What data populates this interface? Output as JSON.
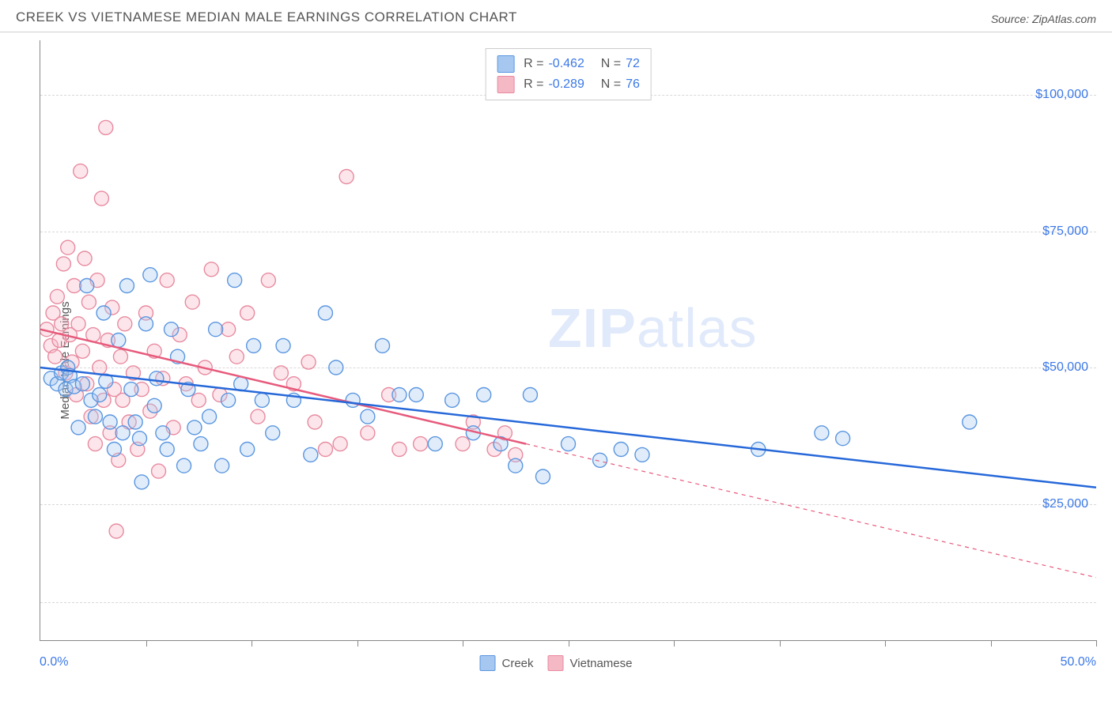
{
  "header": {
    "title": "CREEK VS VIETNAMESE MEDIAN MALE EARNINGS CORRELATION CHART",
    "source_prefix": "Source: ",
    "source_name": "ZipAtlas.com"
  },
  "chart": {
    "type": "scatter",
    "ylabel": "Median Male Earnings",
    "xlim": [
      0,
      50
    ],
    "ylim": [
      0,
      110000
    ],
    "xtick_positions": [
      0,
      5,
      10,
      15,
      20,
      25,
      30,
      35,
      40,
      45,
      50
    ],
    "xaxis_left_label": "0.0%",
    "xaxis_right_label": "50.0%",
    "yticks": [
      {
        "value": 25000,
        "label": "$25,000"
      },
      {
        "value": 50000,
        "label": "$50,000"
      },
      {
        "value": 75000,
        "label": "$75,000"
      },
      {
        "value": 100000,
        "label": "$100,000"
      }
    ],
    "grid_values": [
      7000,
      25000,
      50000,
      75000,
      100000
    ],
    "grid_color": "#d8d8d8",
    "background_color": "#ffffff",
    "marker_radius": 9,
    "marker_fill_opacity": 0.35,
    "marker_stroke_width": 1.4,
    "line_width": 2.5,
    "watermark": "ZIPatlas"
  },
  "series": {
    "creek": {
      "label": "Creek",
      "color_fill": "#a6c8f0",
      "color_stroke": "#5a96e0",
      "line_color": "#2668d9",
      "stats": {
        "R": "-0.462",
        "N": "72"
      },
      "regression": {
        "x1": 0,
        "y1": 50000,
        "x2": 50,
        "y2": 28000,
        "dashed": false
      },
      "points": [
        [
          0.5,
          48000
        ],
        [
          0.8,
          47000
        ],
        [
          1.0,
          49000
        ],
        [
          1.2,
          46000
        ],
        [
          1.3,
          50000
        ],
        [
          1.4,
          48500
        ],
        [
          1.6,
          46500
        ],
        [
          1.8,
          39000
        ],
        [
          2.0,
          47000
        ],
        [
          2.2,
          65000
        ],
        [
          2.4,
          44000
        ],
        [
          2.6,
          41000
        ],
        [
          2.8,
          45000
        ],
        [
          3.0,
          60000
        ],
        [
          3.1,
          47500
        ],
        [
          3.3,
          40000
        ],
        [
          3.5,
          35000
        ],
        [
          3.7,
          55000
        ],
        [
          3.9,
          38000
        ],
        [
          4.1,
          65000
        ],
        [
          4.3,
          46000
        ],
        [
          4.5,
          40000
        ],
        [
          4.7,
          37000
        ],
        [
          4.8,
          29000
        ],
        [
          5.0,
          58000
        ],
        [
          5.2,
          67000
        ],
        [
          5.4,
          43000
        ],
        [
          5.5,
          48000
        ],
        [
          5.8,
          38000
        ],
        [
          6.0,
          35000
        ],
        [
          6.2,
          57000
        ],
        [
          6.5,
          52000
        ],
        [
          6.8,
          32000
        ],
        [
          7.0,
          46000
        ],
        [
          7.3,
          39000
        ],
        [
          7.6,
          36000
        ],
        [
          8.0,
          41000
        ],
        [
          8.3,
          57000
        ],
        [
          8.6,
          32000
        ],
        [
          8.9,
          44000
        ],
        [
          9.2,
          66000
        ],
        [
          9.5,
          47000
        ],
        [
          9.8,
          35000
        ],
        [
          10.1,
          54000
        ],
        [
          10.5,
          44000
        ],
        [
          11.0,
          38000
        ],
        [
          11.5,
          54000
        ],
        [
          12.0,
          44000
        ],
        [
          12.8,
          34000
        ],
        [
          13.5,
          60000
        ],
        [
          14.0,
          50000
        ],
        [
          14.8,
          44000
        ],
        [
          15.5,
          41000
        ],
        [
          16.2,
          54000
        ],
        [
          17.0,
          45000
        ],
        [
          17.8,
          45000
        ],
        [
          18.7,
          36000
        ],
        [
          19.5,
          44000
        ],
        [
          20.5,
          38000
        ],
        [
          21.0,
          45000
        ],
        [
          21.8,
          36000
        ],
        [
          22.5,
          32000
        ],
        [
          23.2,
          45000
        ],
        [
          23.8,
          30000
        ],
        [
          25.0,
          36000
        ],
        [
          26.5,
          33000
        ],
        [
          27.5,
          35000
        ],
        [
          28.5,
          34000
        ],
        [
          34.0,
          35000
        ],
        [
          37.0,
          38000
        ],
        [
          38.0,
          37000
        ],
        [
          44.0,
          40000
        ]
      ]
    },
    "vietnamese": {
      "label": "Vietnamese",
      "color_fill": "#f5b8c5",
      "color_stroke": "#e88aa0",
      "line_color": "#e75a7c",
      "stats": {
        "R": "-0.289",
        "N": "76"
      },
      "regression_solid": {
        "x1": 0,
        "y1": 57000,
        "x2": 23,
        "y2": 36000
      },
      "regression_dashed": {
        "x1": 23,
        "y1": 36000,
        "x2": 50,
        "y2": 11500
      },
      "points": [
        [
          0.3,
          57000
        ],
        [
          0.5,
          54000
        ],
        [
          0.6,
          60000
        ],
        [
          0.7,
          52000
        ],
        [
          0.8,
          63000
        ],
        [
          0.9,
          55000
        ],
        [
          1.0,
          58000
        ],
        [
          1.1,
          69000
        ],
        [
          1.2,
          49000
        ],
        [
          1.3,
          72000
        ],
        [
          1.4,
          56000
        ],
        [
          1.5,
          51000
        ],
        [
          1.6,
          65000
        ],
        [
          1.7,
          45000
        ],
        [
          1.8,
          58000
        ],
        [
          1.9,
          86000
        ],
        [
          2.0,
          53000
        ],
        [
          2.1,
          70000
        ],
        [
          2.2,
          47000
        ],
        [
          2.3,
          62000
        ],
        [
          2.4,
          41000
        ],
        [
          2.5,
          56000
        ],
        [
          2.6,
          36000
        ],
        [
          2.7,
          66000
        ],
        [
          2.8,
          50000
        ],
        [
          2.9,
          81000
        ],
        [
          3.0,
          44000
        ],
        [
          3.1,
          94000
        ],
        [
          3.2,
          55000
        ],
        [
          3.3,
          38000
        ],
        [
          3.4,
          61000
        ],
        [
          3.5,
          46000
        ],
        [
          3.6,
          20000
        ],
        [
          3.7,
          33000
        ],
        [
          3.8,
          52000
        ],
        [
          3.9,
          44000
        ],
        [
          4.0,
          58000
        ],
        [
          4.2,
          40000
        ],
        [
          4.4,
          49000
        ],
        [
          4.6,
          35000
        ],
        [
          4.8,
          46000
        ],
        [
          5.0,
          60000
        ],
        [
          5.2,
          42000
        ],
        [
          5.4,
          53000
        ],
        [
          5.6,
          31000
        ],
        [
          5.8,
          48000
        ],
        [
          6.0,
          66000
        ],
        [
          6.3,
          39000
        ],
        [
          6.6,
          56000
        ],
        [
          6.9,
          47000
        ],
        [
          7.2,
          62000
        ],
        [
          7.5,
          44000
        ],
        [
          7.8,
          50000
        ],
        [
          8.1,
          68000
        ],
        [
          8.5,
          45000
        ],
        [
          8.9,
          57000
        ],
        [
          9.3,
          52000
        ],
        [
          9.8,
          60000
        ],
        [
          10.3,
          41000
        ],
        [
          10.8,
          66000
        ],
        [
          11.4,
          49000
        ],
        [
          12.0,
          47000
        ],
        [
          12.7,
          51000
        ],
        [
          13.0,
          40000
        ],
        [
          13.5,
          35000
        ],
        [
          14.2,
          36000
        ],
        [
          14.5,
          85000
        ],
        [
          15.5,
          38000
        ],
        [
          16.5,
          45000
        ],
        [
          17.0,
          35000
        ],
        [
          18.0,
          36000
        ],
        [
          20.0,
          36000
        ],
        [
          20.5,
          40000
        ],
        [
          21.5,
          35000
        ],
        [
          22.0,
          38000
        ],
        [
          22.5,
          34000
        ]
      ]
    }
  },
  "stats_legend": {
    "R_label": "R =",
    "N_label": "N ="
  }
}
